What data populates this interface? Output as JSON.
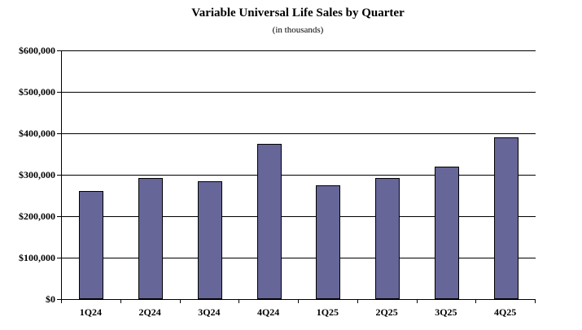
{
  "chart_data": {
    "type": "bar",
    "title": "Variable Universal Life Sales by Quarter",
    "subtitle": "(in thousands)",
    "categories": [
      "1Q24",
      "2Q24",
      "3Q24",
      "4Q24",
      "1Q25",
      "2Q25",
      "3Q25",
      "4Q25"
    ],
    "values": [
      260000,
      292000,
      284000,
      375000,
      274000,
      292000,
      320000,
      390000
    ],
    "xlabel": "",
    "ylabel": "",
    "ylim": [
      0,
      600000
    ],
    "ytick_step": 100000,
    "ytick_labels": [
      "$0",
      "$100,000",
      "$200,000",
      "$300,000",
      "$400,000",
      "$500,000",
      "$600,000"
    ],
    "grid": true,
    "legend": false,
    "bar_color": "#666699",
    "bar_border_color": "#000000",
    "axis_color": "#000000"
  }
}
